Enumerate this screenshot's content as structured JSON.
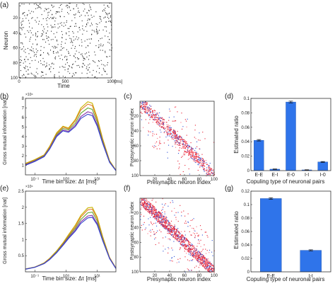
{
  "chart_data": [
    {
      "id": "a",
      "panel_label": "(a)",
      "type": "raster",
      "xlabel": "Time",
      "ylabel": "Neuron",
      "x_unit": "[ms]",
      "xlim": [
        0,
        1000
      ],
      "ylim": [
        0,
        100
      ],
      "xticks": [
        0,
        500,
        1000
      ],
      "yticks": [
        20,
        40,
        60,
        80,
        100
      ]
    },
    {
      "id": "b",
      "panel_label": "(b)",
      "type": "line",
      "xlabel": "Time bin size: Δτ [ms]",
      "ylabel": "Gross mutual information [nat]",
      "xscale": "log",
      "xlim": [
        0.05,
        40
      ],
      "ylim": [
        0,
        80000
      ],
      "y_exponent": "×10⁴",
      "xticks": [
        {
          "v": 0.1,
          "label": "10⁻¹"
        },
        {
          "v": 1,
          "label": "10⁰"
        },
        {
          "v": 10,
          "label": "10¹"
        }
      ],
      "yticks": [
        {
          "v": 10000,
          "label": "1"
        },
        {
          "v": 20000,
          "label": "2"
        },
        {
          "v": 30000,
          "label": "3"
        },
        {
          "v": 40000,
          "label": "4"
        },
        {
          "v": 50000,
          "label": "5"
        },
        {
          "v": 60000,
          "label": "6"
        },
        {
          "v": 70000,
          "label": "7"
        },
        {
          "v": 80000,
          "label": "8"
        }
      ],
      "x": [
        0.05,
        0.1,
        0.2,
        0.3,
        0.5,
        0.8,
        1.2,
        2,
        3,
        5,
        7,
        10,
        15,
        25,
        40
      ],
      "series": [
        {
          "color": "#c8b400",
          "values": [
            12000,
            16000,
            21000,
            30000,
            44000,
            51000,
            49000,
            58000,
            70000,
            76500,
            75000,
            60000,
            38000,
            15000,
            5000
          ]
        },
        {
          "color": "#e07a2a",
          "values": [
            11500,
            15500,
            20500,
            29000,
            43000,
            50000,
            48000,
            56500,
            68000,
            74000,
            72500,
            58000,
            37000,
            14500,
            4800
          ]
        },
        {
          "color": "#66aa33",
          "values": [
            11000,
            15000,
            20000,
            28000,
            42000,
            48500,
            47000,
            54000,
            64500,
            70000,
            68500,
            55500,
            35500,
            14000,
            4600
          ]
        },
        {
          "color": "#8833aa",
          "values": [
            10500,
            14500,
            19500,
            27500,
            41000,
            47000,
            45500,
            52000,
            61000,
            66000,
            64500,
            52500,
            34000,
            13500,
            4500
          ]
        },
        {
          "color": "#3344cc",
          "values": [
            10000,
            14000,
            19000,
            27000,
            40000,
            46000,
            44500,
            50500,
            59000,
            63500,
            62000,
            51000,
            33000,
            13000,
            4400
          ]
        }
      ]
    },
    {
      "id": "c",
      "panel_label": "(c)",
      "type": "heatmap",
      "xlabel": "Presynaptic neuron index",
      "ylabel": "Postsynaptic neuron index",
      "xlim": [
        0,
        100
      ],
      "ylim": [
        0,
        100
      ],
      "xticks": [
        20,
        40,
        60,
        80,
        100
      ],
      "yticks": [
        20,
        40,
        60,
        80,
        100
      ],
      "colors": [
        "#e8283a",
        "#3a5ad8",
        "#ff7a8a"
      ]
    },
    {
      "id": "d",
      "panel_label": "(d)",
      "type": "bar",
      "xlabel": "Copuling type of neuronal pairs",
      "ylabel": "Estimated ratio",
      "categories": [
        "E-E",
        "E-I",
        "E-0",
        "I-I",
        "I-0"
      ],
      "values": [
        0.042,
        0.002,
        0.095,
        0.001,
        0.012
      ],
      "errors": [
        0.001,
        0.0003,
        0.0012,
        0.0002,
        0.0006
      ],
      "ylim": [
        0,
        0.1
      ],
      "yticks": [
        {
          "v": 0,
          "label": "0"
        },
        {
          "v": 0.02,
          "label": "0.02"
        },
        {
          "v": 0.04,
          "label": "0.04"
        },
        {
          "v": 0.06,
          "label": "0.06"
        },
        {
          "v": 0.08,
          "label": "0.08"
        },
        {
          "v": 0.1,
          "label": "0.1"
        }
      ],
      "bar_color": "#2f74ea"
    },
    {
      "id": "e",
      "panel_label": "(e)",
      "type": "line",
      "xlabel": "Time bin size: Δτ [ms]",
      "ylabel": "Gross mutual information [nat]",
      "xscale": "log",
      "xlim": [
        0.05,
        40
      ],
      "ylim": [
        0,
        25000
      ],
      "y_exponent": "×10⁴",
      "xticks": [
        {
          "v": 0.1,
          "label": "10⁻¹"
        },
        {
          "v": 1,
          "label": "10⁰"
        },
        {
          "v": 10,
          "label": "10¹"
        }
      ],
      "yticks": [
        {
          "v": 5000,
          "label": "0.5"
        },
        {
          "v": 10000,
          "label": "1"
        },
        {
          "v": 15000,
          "label": "1.5"
        },
        {
          "v": 20000,
          "label": "2"
        },
        {
          "v": 25000,
          "label": "2.5"
        }
      ],
      "x": [
        0.05,
        0.1,
        0.2,
        0.3,
        0.5,
        0.8,
        1.2,
        2,
        3,
        5,
        7,
        10,
        15,
        25,
        40
      ],
      "series": [
        {
          "color": "#c8b400",
          "values": [
            900,
            1500,
            2800,
            4200,
            6500,
            9000,
            11500,
            14500,
            17500,
            19800,
            20000,
            17000,
            11000,
            4500,
            1200
          ]
        },
        {
          "color": "#e07a2a",
          "values": [
            880,
            1480,
            2700,
            4100,
            6300,
            8800,
            11200,
            14000,
            17000,
            19200,
            19400,
            16500,
            10700,
            4400,
            1150
          ]
        },
        {
          "color": "#66aa33",
          "values": [
            860,
            1450,
            2650,
            4000,
            6200,
            8600,
            10900,
            13500,
            16200,
            18300,
            18500,
            15800,
            10300,
            4300,
            1100
          ]
        },
        {
          "color": "#8833aa",
          "values": [
            840,
            1420,
            2600,
            3900,
            6000,
            8400,
            10600,
            13000,
            15500,
            17300,
            17500,
            15000,
            9900,
            4200,
            1050
          ]
        },
        {
          "color": "#3344cc",
          "values": [
            820,
            1400,
            2550,
            3800,
            5900,
            8200,
            10300,
            12600,
            15000,
            16700,
            16900,
            14600,
            9700,
            4100,
            1000
          ]
        }
      ]
    },
    {
      "id": "f",
      "panel_label": "(f)",
      "type": "heatmap",
      "xlabel": "Presynaptic neuron index",
      "ylabel": "Postsynaptic neuron index",
      "xlim": [
        0,
        100
      ],
      "ylim": [
        0,
        100
      ],
      "xticks": [
        20,
        40,
        60,
        80,
        100
      ],
      "yticks": [
        20,
        40,
        60,
        80,
        100
      ],
      "colors": [
        "#e8283a",
        "#3a5ad8",
        "#ff7a8a"
      ]
    },
    {
      "id": "g",
      "panel_label": "(g)",
      "type": "bar",
      "xlabel": "Copuling type of neuronal pairs",
      "ylabel": "Estimated ratio",
      "categories": [
        "E-E",
        "I-I"
      ],
      "values": [
        0.109,
        0.032
      ],
      "errors": [
        0.0012,
        0.0008
      ],
      "ylim": [
        0,
        0.12
      ],
      "yticks": [
        {
          "v": 0,
          "label": "0"
        },
        {
          "v": 0.02,
          "label": "0.02"
        },
        {
          "v": 0.04,
          "label": "0.04"
        },
        {
          "v": 0.06,
          "label": "0.06"
        },
        {
          "v": 0.08,
          "label": "0.08"
        },
        {
          "v": 0.1,
          "label": "0.1"
        },
        {
          "v": 0.12,
          "label": "0.12"
        }
      ],
      "bar_color": "#2f74ea"
    }
  ]
}
